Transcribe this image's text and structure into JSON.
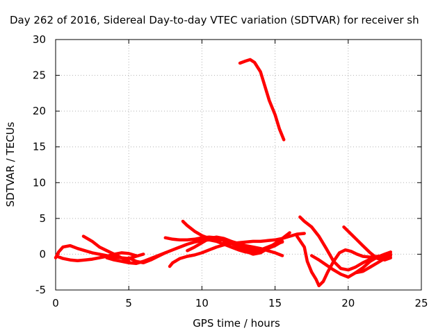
{
  "chart_data": {
    "type": "line",
    "title": "Day 262 of 2016, Sidereal Day-to-day VTEC variation (SDTVAR) for receiver sh",
    "xlabel": "GPS time / hours",
    "ylabel": "SDTVAR / TECUs",
    "xlim": [
      0,
      25
    ],
    "ylim": [
      -5,
      30
    ],
    "xticks": [
      0,
      5,
      10,
      15,
      20,
      25
    ],
    "yticks": [
      -5,
      0,
      5,
      10,
      15,
      20,
      25,
      30
    ],
    "grid": true,
    "legend": "none",
    "series_color": "#ff0000",
    "series": [
      {
        "x": [
          0.0,
          0.2,
          0.5,
          1.0,
          1.5,
          2.0,
          2.5,
          3.0,
          3.5,
          4.0,
          4.5,
          5.0,
          5.5,
          6.0
        ],
        "y": [
          -0.5,
          0.3,
          1.0,
          1.2,
          0.8,
          0.5,
          0.2,
          0.0,
          -0.2,
          -0.4,
          -0.5,
          -0.6,
          -0.3,
          0.0
        ]
      },
      {
        "x": [
          0.1,
          0.5,
          1.0,
          1.5,
          2.0,
          2.5,
          3.0,
          3.5,
          4.0,
          4.5,
          5.0,
          5.5
        ],
        "y": [
          -0.3,
          -0.6,
          -0.8,
          -0.9,
          -0.8,
          -0.7,
          -0.5,
          -0.3,
          0.0,
          0.2,
          0.1,
          -0.2
        ]
      },
      {
        "x": [
          1.9,
          2.5,
          3.0,
          3.5,
          4.0,
          4.5,
          5.0
        ],
        "y": [
          2.5,
          1.8,
          1.0,
          0.5,
          0.0,
          -0.5,
          -1.0
        ]
      },
      {
        "x": [
          3.5,
          4.0,
          4.5,
          5.0,
          5.5,
          6.0,
          6.5,
          7.0,
          7.5
        ],
        "y": [
          -0.5,
          -0.8,
          -1.0,
          -1.2,
          -1.3,
          -1.0,
          -0.6,
          -0.2,
          0.2
        ]
      },
      {
        "x": [
          5.0,
          5.5,
          6.0,
          6.5,
          7.0,
          7.5,
          8.0,
          8.5,
          9.0,
          9.5,
          10.0,
          10.5,
          11.0,
          11.5,
          12.0,
          12.5,
          13.0,
          13.5,
          14.0
        ],
        "y": [
          -0.5,
          -1.0,
          -1.2,
          -0.8,
          -0.3,
          0.2,
          0.6,
          1.0,
          1.4,
          1.7,
          1.9,
          2.0,
          1.8,
          1.4,
          1.0,
          0.6,
          0.3,
          0.2,
          0.3
        ]
      },
      {
        "x": [
          7.5,
          8.0,
          8.5,
          9.0,
          9.5,
          10.0,
          10.5,
          11.0,
          11.5,
          12.0,
          12.5,
          13.0,
          13.5,
          14.0,
          14.5,
          15.0,
          15.5
        ],
        "y": [
          2.3,
          2.1,
          2.0,
          2.0,
          2.1,
          2.3,
          2.4,
          2.3,
          2.0,
          1.6,
          1.2,
          0.9,
          0.7,
          0.6,
          0.8,
          1.2,
          1.8
        ]
      },
      {
        "x": [
          7.8,
          8.0,
          8.5,
          9.0,
          9.5,
          10.0,
          10.5,
          11.0,
          11.5,
          12.0,
          12.5,
          13.0,
          13.5,
          14.0,
          14.5,
          15.0,
          15.5,
          16.0,
          16.5,
          17.0
        ],
        "y": [
          -1.7,
          -1.2,
          -0.6,
          -0.3,
          -0.1,
          0.2,
          0.6,
          1.0,
          1.3,
          1.5,
          1.6,
          1.7,
          1.8,
          1.8,
          1.9,
          2.0,
          2.2,
          2.5,
          2.8,
          2.9
        ]
      },
      {
        "x": [
          8.7,
          9.0,
          9.5,
          10.0,
          10.5,
          11.0,
          11.5,
          12.0,
          12.5,
          13.0,
          13.5,
          14.0,
          14.5,
          15.0,
          15.5
        ],
        "y": [
          4.6,
          4.0,
          3.2,
          2.6,
          2.2,
          2.0,
          2.0,
          1.8,
          1.5,
          1.2,
          1.0,
          0.8,
          0.5,
          0.2,
          -0.2
        ]
      },
      {
        "x": [
          9.0,
          9.5,
          10.0,
          10.5,
          11.0,
          11.5,
          12.0,
          12.5,
          13.0,
          13.5,
          14.0,
          14.5,
          15.0,
          15.5
        ],
        "y": [
          0.5,
          1.0,
          1.6,
          2.2,
          2.4,
          2.2,
          1.8,
          1.3,
          0.8,
          0.5,
          0.6,
          1.0,
          1.4,
          1.7
        ]
      },
      {
        "x": [
          11.5,
          12.0,
          12.5,
          13.0,
          13.5,
          14.0,
          14.5,
          15.0,
          15.5,
          16.0
        ],
        "y": [
          1.8,
          1.5,
          1.0,
          0.4,
          0.0,
          0.2,
          0.8,
          1.5,
          2.2,
          3.0
        ]
      },
      {
        "x": [
          12.6,
          13.0,
          13.3,
          13.6,
          14.0,
          14.3,
          14.6,
          15.0,
          15.3,
          15.6
        ],
        "y": [
          26.7,
          27.0,
          27.2,
          26.8,
          25.5,
          23.5,
          21.5,
          19.5,
          17.5,
          16.0
        ]
      },
      {
        "x": [
          16.7,
          17.0,
          17.5,
          18.0,
          18.5,
          19.0,
          19.5,
          20.0,
          20.5,
          21.0,
          21.5,
          22.0,
          22.5,
          22.9
        ],
        "y": [
          5.2,
          4.6,
          3.8,
          2.5,
          0.8,
          -1.0,
          -2.0,
          -2.2,
          -1.8,
          -1.2,
          -0.7,
          -0.5,
          -0.4,
          -0.2
        ]
      },
      {
        "x": [
          16.5,
          17.0,
          17.2,
          17.5,
          17.8,
          18.0,
          18.3,
          18.6,
          19.0,
          19.4,
          19.8,
          20.2,
          20.6,
          21.0,
          21.5,
          22.0,
          22.5,
          22.9
        ],
        "y": [
          2.5,
          1.0,
          -1.0,
          -2.5,
          -3.5,
          -4.4,
          -3.8,
          -2.5,
          -1.0,
          0.2,
          0.6,
          0.4,
          0.0,
          -0.3,
          -0.4,
          -0.3,
          -0.2,
          0.0
        ]
      },
      {
        "x": [
          17.5,
          18.0,
          18.5,
          19.0,
          19.5,
          20.0,
          20.5,
          21.0,
          21.5,
          22.0,
          22.5,
          22.9
        ],
        "y": [
          -0.2,
          -0.8,
          -1.5,
          -2.2,
          -2.8,
          -3.2,
          -2.6,
          -1.9,
          -1.0,
          -0.4,
          0.0,
          0.3
        ]
      },
      {
        "x": [
          19.7,
          20.0,
          20.5,
          21.0,
          21.5,
          22.0,
          22.5,
          22.9
        ],
        "y": [
          3.8,
          3.2,
          2.2,
          1.2,
          0.2,
          -0.6,
          -0.8,
          -0.5
        ]
      },
      {
        "x": [
          20.5,
          21.0,
          21.5,
          22.0,
          22.5,
          22.8
        ],
        "y": [
          -2.6,
          -2.4,
          -1.8,
          -1.2,
          -0.6,
          -0.2
        ]
      }
    ]
  }
}
